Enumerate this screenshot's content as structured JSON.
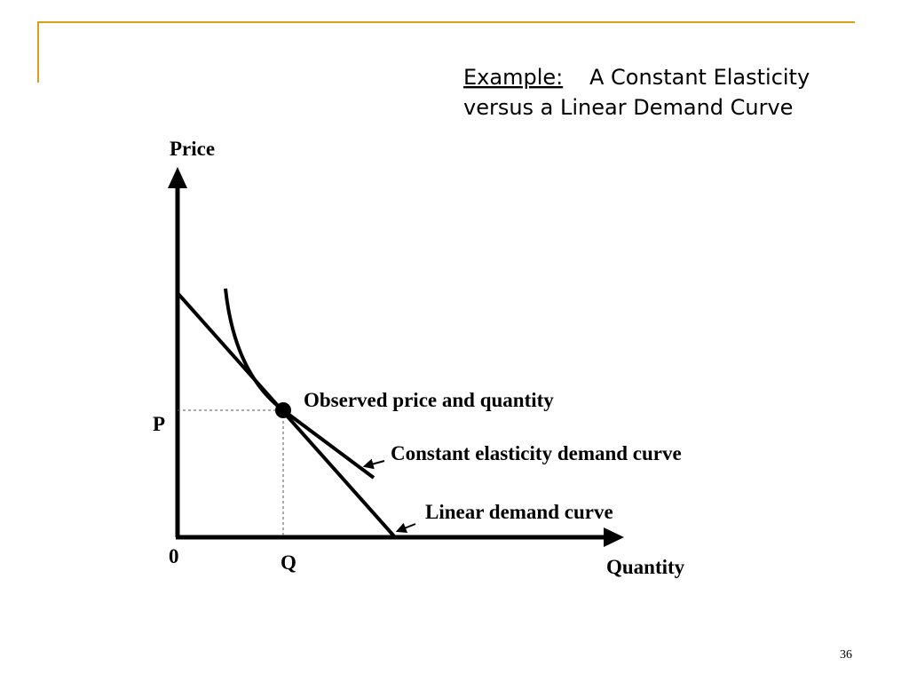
{
  "header": {
    "lead": "Example:",
    "title_lines": [
      "A Constant Elasticity",
      "versus a Linear Demand Curve"
    ]
  },
  "diagram": {
    "y_axis_label": "Price",
    "x_axis_label": "Quantity",
    "origin_label": "0",
    "price_label": "P",
    "quantity_label": "Q",
    "annotations": [
      "Observed price and quantity",
      "Constant elasticity demand curve",
      "Linear demand curve"
    ]
  },
  "footer": {
    "page_number": "36"
  }
}
